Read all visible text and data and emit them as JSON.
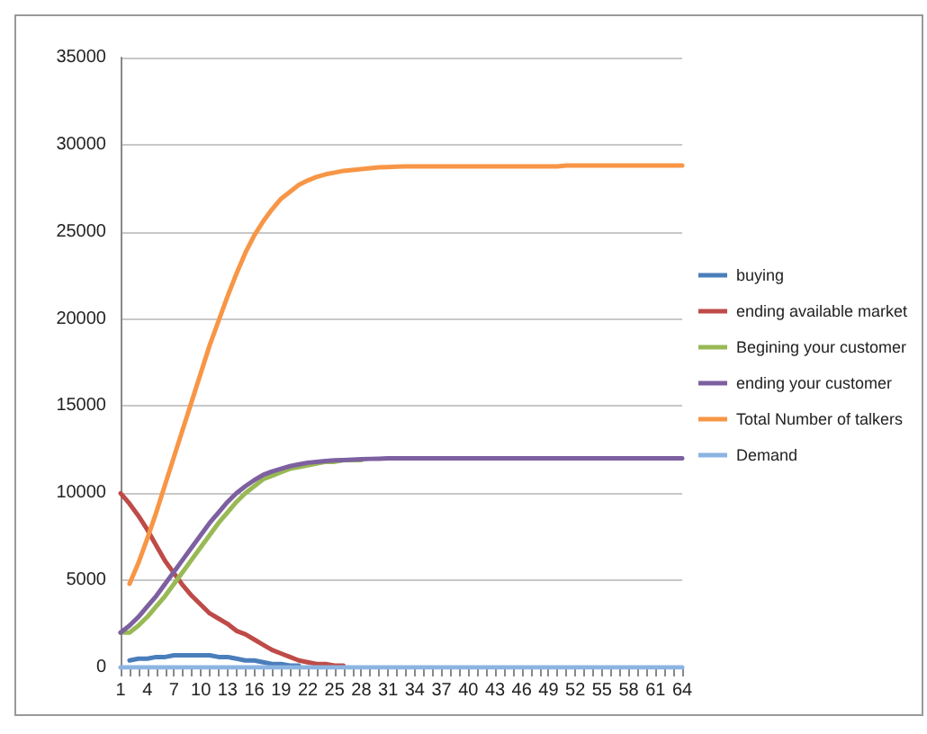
{
  "chart_data": {
    "type": "line",
    "categories": [
      "1",
      null,
      null,
      "4",
      null,
      null,
      "7",
      null,
      null,
      "10",
      null,
      null,
      "13",
      null,
      null,
      "16",
      null,
      null,
      "19",
      null,
      null,
      "22",
      null,
      null,
      "25",
      null,
      null,
      "28",
      null,
      null,
      "31",
      null,
      null,
      "34",
      null,
      null,
      "37",
      null,
      null,
      "40",
      null,
      null,
      "43",
      null,
      null,
      "46",
      null,
      null,
      "49",
      null,
      null,
      "52",
      null,
      null,
      "55",
      null,
      null,
      "58",
      null,
      null,
      "61",
      null,
      null,
      "64"
    ],
    "ylim": [
      0,
      35000
    ],
    "yticks": [
      0,
      5000,
      10000,
      15000,
      20000,
      25000,
      30000,
      35000
    ],
    "grid": "y",
    "legend": "right",
    "marker": "none",
    "line_style": "solid",
    "series": [
      {
        "name": "buying",
        "color": "#4a7ebb",
        "values": [
          null,
          400,
          500,
          500,
          600,
          600,
          700,
          700,
          700,
          700,
          700,
          600,
          600,
          500,
          400,
          400,
          300,
          200,
          200,
          100,
          100,
          null,
          null,
          null,
          null,
          null,
          null,
          null,
          null,
          null,
          null,
          null,
          null,
          null,
          null,
          null,
          null,
          null,
          null,
          null,
          null,
          null,
          null,
          null,
          null,
          null,
          null,
          null,
          null,
          null,
          null,
          null,
          null,
          null,
          null,
          null,
          null,
          null,
          null,
          null,
          null,
          null,
          null,
          null
        ]
      },
      {
        "name": "ending available market",
        "color": "#be4b48",
        "values": [
          10000,
          9400,
          8700,
          7900,
          7000,
          6100,
          5400,
          4700,
          4100,
          3600,
          3100,
          2800,
          2500,
          2100,
          1900,
          1600,
          1300,
          1000,
          800,
          600,
          400,
          300,
          200,
          200,
          100,
          100,
          null,
          null,
          null,
          null,
          null,
          null,
          null,
          null,
          null,
          null,
          null,
          null,
          null,
          null,
          null,
          null,
          null,
          null,
          null,
          null,
          null,
          null,
          null,
          null,
          null,
          null,
          null,
          null,
          null,
          null,
          null,
          null,
          null,
          null,
          null,
          null,
          null,
          null
        ]
      },
      {
        "name": "Begining your customer",
        "color": "#98b954",
        "values": [
          2000,
          2000,
          2400,
          2900,
          3500,
          4100,
          4800,
          5500,
          6200,
          6900,
          7600,
          8300,
          8900,
          9500,
          10000,
          10400,
          10800,
          11000,
          11200,
          11400,
          11500,
          11600,
          11700,
          11800,
          11800,
          11900,
          11900,
          11900,
          null,
          null,
          null,
          null,
          null,
          null,
          null,
          null,
          null,
          null,
          null,
          null,
          null,
          null,
          null,
          null,
          null,
          null,
          null,
          null,
          null,
          null,
          null,
          null,
          null,
          null,
          null,
          null,
          null,
          null,
          null,
          null,
          null,
          null,
          null,
          null
        ]
      },
      {
        "name": "ending your customer",
        "color": "#7d60a0",
        "values": [
          2000,
          2400,
          2900,
          3500,
          4100,
          4800,
          5500,
          6200,
          6900,
          7600,
          8300,
          8900,
          9500,
          10000,
          10400,
          10750,
          11050,
          11250,
          11400,
          11550,
          11650,
          11750,
          11800,
          11850,
          11880,
          11900,
          11930,
          11950,
          11970,
          11980,
          12000,
          12000,
          12000,
          12000,
          12000,
          12000,
          12000,
          12000,
          12000,
          12000,
          12000,
          12000,
          12000,
          12000,
          12000,
          12000,
          12000,
          12000,
          12000,
          12000,
          12000,
          12000,
          12000,
          12000,
          12000,
          12000,
          12000,
          12000,
          12000,
          12000,
          12000,
          12000,
          12000,
          12000
        ]
      },
      {
        "name": "Total Number of talkers",
        "color": "#f79646",
        "values": [
          null,
          4800,
          6000,
          7400,
          8900,
          10500,
          12100,
          13700,
          15300,
          16900,
          18500,
          19900,
          21300,
          22600,
          23800,
          24800,
          25600,
          26300,
          26900,
          27300,
          27700,
          27950,
          28150,
          28300,
          28400,
          28500,
          28550,
          28600,
          28650,
          28700,
          28720,
          28740,
          28750,
          28750,
          28750,
          28750,
          28750,
          28750,
          28750,
          28750,
          28750,
          28750,
          28750,
          28750,
          28750,
          28750,
          28750,
          28750,
          28750,
          28750,
          28800,
          28800,
          28800,
          28800,
          28800,
          28800,
          28800,
          28800,
          28800,
          28800,
          28800,
          28800,
          28800,
          28800
        ]
      },
      {
        "name": "Demand",
        "color": "#8cb4e2",
        "values": [
          0,
          0,
          0,
          0,
          0,
          0,
          0,
          0,
          0,
          0,
          0,
          0,
          0,
          0,
          0,
          0,
          0,
          0,
          0,
          0,
          0,
          0,
          0,
          0,
          0,
          0,
          0,
          0,
          0,
          0,
          0,
          0,
          0,
          0,
          0,
          0,
          0,
          0,
          0,
          0,
          0,
          0,
          0,
          0,
          0,
          0,
          0,
          0,
          0,
          0,
          0,
          0,
          0,
          0,
          0,
          0,
          0,
          0,
          0,
          0,
          0,
          0,
          0,
          0
        ]
      }
    ]
  }
}
